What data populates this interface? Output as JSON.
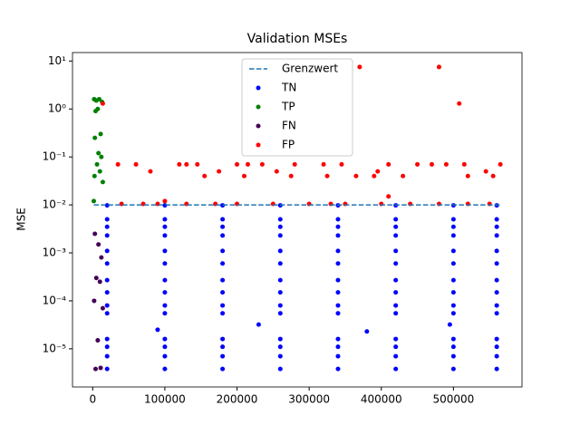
{
  "chart_data": {
    "type": "scatter",
    "title": "Validation MSEs",
    "y_label": "MSE",
    "yscale": "log",
    "legend": "upper center",
    "xlim": [
      -28000,
      595000
    ],
    "ylim": [
      1.6e-06,
      15
    ],
    "xticks": [
      0,
      100000,
      200000,
      300000,
      400000,
      500000
    ],
    "yticks": [
      {
        "value": 1e-05,
        "label": "10⁻⁵"
      },
      {
        "value": 0.0001,
        "label": "10⁻⁴"
      },
      {
        "value": 0.001,
        "label": "10⁻³"
      },
      {
        "value": 0.01,
        "label": "10⁻²"
      },
      {
        "value": 0.1,
        "label": "10⁻¹"
      },
      {
        "value": 1,
        "label": "10⁰"
      },
      {
        "value": 10,
        "label": "10¹"
      }
    ],
    "threshold": {
      "name": "Grenzwert",
      "value": 0.01,
      "color": "#1f77b4"
    },
    "series": [
      {
        "name": "TN",
        "color": "#0000ff",
        "x": [
          20000,
          100000,
          180000,
          260000,
          340000,
          420000,
          500000,
          560000,
          20000,
          100000,
          180000,
          260000,
          340000,
          420000,
          500000,
          560000,
          20000,
          100000,
          180000,
          260000,
          340000,
          420000,
          500000,
          560000,
          20000,
          100000,
          180000,
          260000,
          340000,
          420000,
          500000,
          560000,
          20000,
          100000,
          180000,
          260000,
          340000,
          420000,
          500000,
          560000,
          20000,
          100000,
          180000,
          260000,
          340000,
          420000,
          500000,
          560000,
          20000,
          100000,
          180000,
          260000,
          340000,
          420000,
          500000,
          560000,
          20000,
          100000,
          180000,
          260000,
          340000,
          420000,
          500000,
          560000,
          20000,
          100000,
          180000,
          260000,
          340000,
          420000,
          500000,
          560000,
          20000,
          100000,
          180000,
          260000,
          340000,
          420000,
          500000,
          560000,
          20000,
          100000,
          180000,
          260000,
          340000,
          420000,
          500000,
          560000,
          20000,
          100000,
          180000,
          260000,
          340000,
          420000,
          500000,
          560000,
          20000,
          100000,
          180000,
          260000,
          340000,
          420000,
          500000,
          560000,
          20000,
          100000,
          180000,
          260000,
          340000,
          420000,
          500000,
          560000,
          90000,
          230000,
          380000,
          495000
        ],
        "values": [
          0.0098,
          0.0098,
          0.0098,
          0.0098,
          0.0098,
          0.0098,
          0.0098,
          0.0098,
          0.005,
          0.005,
          0.005,
          0.005,
          0.005,
          0.005,
          0.005,
          0.005,
          0.0035,
          0.0035,
          0.0035,
          0.0035,
          0.0035,
          0.0035,
          0.0035,
          0.0035,
          0.0023,
          0.0023,
          0.0023,
          0.0023,
          0.0023,
          0.0023,
          0.0023,
          0.0023,
          0.0011,
          0.0011,
          0.0011,
          0.0011,
          0.0011,
          0.0011,
          0.0011,
          0.0011,
          0.0006,
          0.0006,
          0.0006,
          0.0006,
          0.0006,
          0.0006,
          0.0006,
          0.0006,
          0.00027,
          0.00027,
          0.00027,
          0.00027,
          0.00027,
          0.00027,
          0.00027,
          0.00027,
          0.00015,
          0.00015,
          0.00015,
          0.00015,
          0.00015,
          0.00015,
          0.00015,
          0.00015,
          8e-05,
          8e-05,
          8e-05,
          8e-05,
          8e-05,
          8e-05,
          8e-05,
          8e-05,
          5.5e-05,
          5.5e-05,
          5.5e-05,
          5.5e-05,
          5.5e-05,
          5.5e-05,
          5.5e-05,
          5.5e-05,
          1.6e-05,
          1.6e-05,
          1.6e-05,
          1.6e-05,
          1.6e-05,
          1.6e-05,
          1.6e-05,
          1.6e-05,
          1.1e-05,
          1.1e-05,
          1.1e-05,
          1.1e-05,
          1.1e-05,
          1.1e-05,
          1.1e-05,
          1.1e-05,
          7e-06,
          7e-06,
          7e-06,
          7e-06,
          7e-06,
          7e-06,
          7e-06,
          7e-06,
          3.8e-06,
          3.8e-06,
          3.8e-06,
          3.8e-06,
          3.8e-06,
          3.8e-06,
          3.8e-06,
          3.8e-06,
          2.5e-05,
          3.2e-05,
          2.3e-05,
          3.2e-05
        ]
      },
      {
        "name": "TP",
        "color": "#008000",
        "x": [
          2000,
          5000,
          9000,
          13000,
          7000,
          4000,
          11000,
          3000,
          8000,
          12000,
          6000,
          10000,
          2500,
          14000,
          1500
        ],
        "values": [
          1.6,
          1.5,
          1.6,
          1.4,
          1.0,
          0.9,
          0.3,
          0.25,
          0.12,
          0.1,
          0.07,
          0.05,
          0.04,
          0.03,
          0.012
        ]
      },
      {
        "name": "FN",
        "color": "#440154",
        "x": [
          3000,
          8000,
          12000,
          5000,
          10000,
          2000,
          14000,
          7000,
          4000,
          11000
        ],
        "values": [
          0.0025,
          0.0015,
          0.0008,
          0.0003,
          0.00025,
          0.0001,
          7e-05,
          1.5e-05,
          3.8e-06,
          4e-06
        ]
      },
      {
        "name": "FP",
        "color": "#ff0000",
        "x": [
          370000,
          480000,
          508000,
          14000,
          35000,
          60000,
          80000,
          120000,
          130000,
          145000,
          175000,
          200000,
          215000,
          235000,
          255000,
          280000,
          320000,
          345000,
          395000,
          410000,
          450000,
          470000,
          490000,
          515000,
          545000,
          565000,
          155000,
          210000,
          275000,
          325000,
          365000,
          390000,
          430000,
          520000,
          555000,
          410000,
          100000,
          40000,
          70000,
          90000,
          130000,
          170000,
          200000,
          250000,
          300000,
          330000,
          350000,
          400000,
          440000,
          480000,
          520000,
          550000
        ],
        "values": [
          7.5,
          7.5,
          1.3,
          1.3,
          0.07,
          0.07,
          0.05,
          0.07,
          0.07,
          0.07,
          0.05,
          0.07,
          0.07,
          0.07,
          0.05,
          0.07,
          0.07,
          0.07,
          0.05,
          0.07,
          0.07,
          0.07,
          0.07,
          0.07,
          0.05,
          0.07,
          0.04,
          0.04,
          0.04,
          0.04,
          0.04,
          0.04,
          0.04,
          0.04,
          0.04,
          0.015,
          0.012,
          0.0105,
          0.0105,
          0.0105,
          0.0105,
          0.0105,
          0.0105,
          0.0105,
          0.0105,
          0.0105,
          0.0105,
          0.0105,
          0.0105,
          0.0105,
          0.0105,
          0.0105
        ]
      }
    ]
  }
}
